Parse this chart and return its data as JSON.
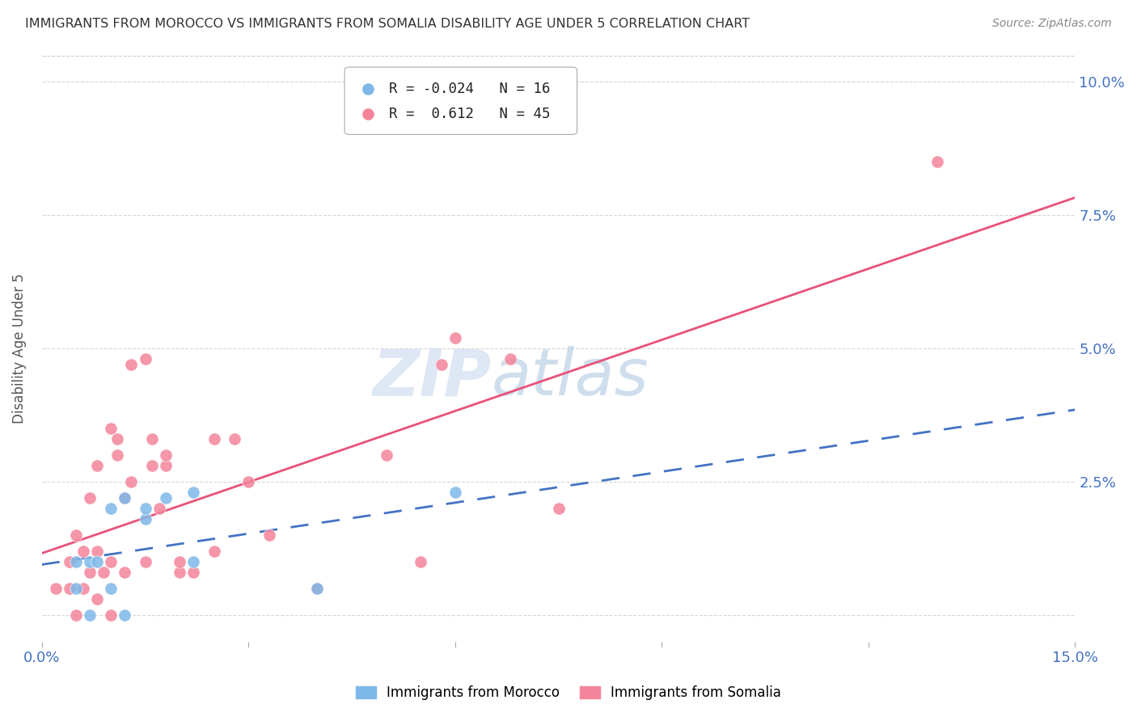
{
  "title": "IMMIGRANTS FROM MOROCCO VS IMMIGRANTS FROM SOMALIA DISABILITY AGE UNDER 5 CORRELATION CHART",
  "source": "Source: ZipAtlas.com",
  "ylabel": "Disability Age Under 5",
  "xlim": [
    0.0,
    0.15
  ],
  "ylim": [
    -0.005,
    0.105
  ],
  "yticks": [
    0.0,
    0.025,
    0.05,
    0.075,
    0.1
  ],
  "ytick_labels": [
    "",
    "2.5%",
    "5.0%",
    "7.5%",
    "10.0%"
  ],
  "xticks": [
    0.0,
    0.03,
    0.06,
    0.09,
    0.12,
    0.15
  ],
  "xtick_labels": [
    "0.0%",
    "",
    "",
    "",
    "",
    "15.0%"
  ],
  "morocco_color": "#7EB8E8",
  "somalia_color": "#F4849A",
  "morocco_R": -0.024,
  "morocco_N": 16,
  "somalia_R": 0.612,
  "somalia_N": 45,
  "morocco_line_color": "#4472C4",
  "somalia_line_color": "#E8527A",
  "watermark_zip": "ZIP",
  "watermark_atlas": "atlas",
  "morocco_scatter_x": [
    0.005,
    0.005,
    0.007,
    0.007,
    0.008,
    0.01,
    0.01,
    0.012,
    0.012,
    0.015,
    0.015,
    0.018,
    0.022,
    0.022,
    0.04,
    0.06
  ],
  "morocco_scatter_y": [
    0.005,
    0.01,
    0.0,
    0.01,
    0.01,
    0.005,
    0.02,
    0.0,
    0.022,
    0.018,
    0.02,
    0.022,
    0.01,
    0.023,
    0.005,
    0.023
  ],
  "somalia_scatter_x": [
    0.002,
    0.004,
    0.004,
    0.005,
    0.005,
    0.006,
    0.006,
    0.007,
    0.007,
    0.008,
    0.008,
    0.008,
    0.009,
    0.01,
    0.01,
    0.01,
    0.011,
    0.011,
    0.012,
    0.012,
    0.013,
    0.013,
    0.015,
    0.015,
    0.016,
    0.016,
    0.017,
    0.018,
    0.018,
    0.02,
    0.02,
    0.022,
    0.025,
    0.025,
    0.028,
    0.03,
    0.033,
    0.04,
    0.05,
    0.055,
    0.058,
    0.06,
    0.068,
    0.075,
    0.13
  ],
  "somalia_scatter_y": [
    0.005,
    0.005,
    0.01,
    0.0,
    0.015,
    0.005,
    0.012,
    0.008,
    0.022,
    0.003,
    0.012,
    0.028,
    0.008,
    0.0,
    0.01,
    0.035,
    0.03,
    0.033,
    0.008,
    0.022,
    0.025,
    0.047,
    0.048,
    0.01,
    0.028,
    0.033,
    0.02,
    0.028,
    0.03,
    0.008,
    0.01,
    0.008,
    0.012,
    0.033,
    0.033,
    0.025,
    0.015,
    0.005,
    0.03,
    0.01,
    0.047,
    0.052,
    0.048,
    0.02,
    0.085
  ]
}
